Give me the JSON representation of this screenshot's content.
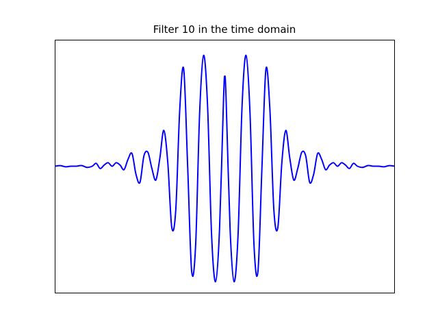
{
  "chart_data": {
    "type": "line",
    "title": "Filter 10 in the time domain",
    "xlabel": "",
    "ylabel": "",
    "grid": false,
    "xticks_visible": false,
    "yticks_visible": false,
    "xlim": [
      -256,
      256
    ],
    "ylim": [
      -1.0,
      1.0
    ],
    "series": [
      {
        "color": "#0000ff",
        "x": [
          -256,
          -248,
          -240,
          -232,
          -224,
          -216,
          -208,
          -200,
          -194,
          -188,
          -182,
          -176,
          -170,
          -164,
          -158,
          -152,
          -146,
          -140,
          -134,
          -128,
          -122,
          -116,
          -110,
          -104,
          -98,
          -92,
          -86,
          -80,
          -74,
          -68,
          -62,
          -56,
          -50,
          -44,
          -38,
          -32,
          -26,
          -20,
          -14,
          -8,
          -2,
          0,
          2,
          8,
          14,
          20,
          26,
          32,
          38,
          44,
          50,
          56,
          62,
          68,
          74,
          80,
          86,
          92,
          98,
          104,
          110,
          116,
          122,
          128,
          134,
          140,
          146,
          152,
          158,
          164,
          170,
          176,
          182,
          188,
          194,
          200,
          208,
          216,
          224,
          232,
          240,
          248,
          256
        ],
        "values": [
          0.0,
          0.005,
          -0.005,
          0.0,
          0.0,
          0.006,
          -0.01,
          0.0,
          0.025,
          -0.02,
          0.01,
          0.03,
          0.0,
          0.03,
          0.01,
          -0.03,
          0.06,
          0.11,
          -0.07,
          -0.14,
          0.09,
          0.12,
          -0.02,
          -0.12,
          0.07,
          0.31,
          0.03,
          -0.53,
          -0.38,
          0.49,
          0.84,
          -0.01,
          -0.91,
          -0.68,
          0.46,
          0.96,
          0.52,
          -0.59,
          -1.0,
          -0.55,
          0.57,
          0.78,
          0.57,
          -0.55,
          -1.0,
          -0.59,
          0.52,
          0.96,
          0.46,
          -0.68,
          -0.91,
          -0.01,
          0.84,
          0.49,
          -0.38,
          -0.53,
          0.03,
          0.31,
          0.07,
          -0.12,
          -0.02,
          0.12,
          0.09,
          -0.14,
          -0.07,
          0.11,
          0.06,
          -0.03,
          0.01,
          0.03,
          0.0,
          0.03,
          0.01,
          -0.02,
          0.025,
          0.0,
          -0.01,
          0.006,
          0.0,
          0.0,
          -0.005,
          0.005,
          0.0
        ]
      }
    ]
  }
}
